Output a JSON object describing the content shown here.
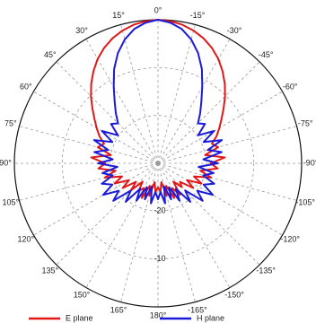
{
  "chart_data": {
    "type": "polar",
    "title": "",
    "angle_ticks": [
      "0°",
      "15°",
      "30°",
      "45°",
      "60°",
      "75°",
      "90°",
      "105°",
      "120°",
      "135°",
      "150°",
      "165°",
      "180°",
      "-165°",
      "-150°",
      "-135°",
      "-120°",
      "-105°",
      "-90°",
      "-75°",
      "-60°",
      "-45°",
      "-30°",
      "-15°"
    ],
    "radial_ticks": [
      "-20",
      "-10"
    ],
    "radial_range_db": [
      -30,
      0
    ],
    "grid": true,
    "legend_position": "bottom",
    "series": [
      {
        "name": "E plane",
        "color": "#e01818",
        "angles_deg": [
          0,
          5,
          10,
          15,
          20,
          25,
          30,
          35,
          40,
          45,
          50,
          55,
          60,
          65,
          70,
          75,
          80,
          85,
          90,
          95,
          100,
          105,
          110,
          115,
          120,
          125,
          130,
          135,
          140,
          145,
          150,
          155,
          160,
          165,
          170,
          175,
          180,
          185,
          190,
          195,
          200,
          205,
          210,
          215,
          220,
          225,
          230,
          235,
          240,
          245,
          250,
          255,
          260,
          265,
          270,
          275,
          280,
          285,
          290,
          295,
          300,
          305,
          310,
          315,
          320,
          325,
          330,
          335,
          340,
          345,
          350,
          355
        ],
        "gain_db": [
          0,
          -0.2,
          -0.6,
          -1.3,
          -2.2,
          -3.4,
          -4.8,
          -6.5,
          -8.3,
          -10.2,
          -12.1,
          -13.8,
          -15.2,
          -16.5,
          -18,
          -17,
          -20,
          -16,
          -19,
          -17.5,
          -21,
          -18.5,
          -22,
          -20,
          -23,
          -21,
          -24,
          -22,
          -25,
          -23,
          -24,
          -22,
          -25,
          -23,
          -26,
          -24,
          -25,
          -24,
          -26,
          -23,
          -25,
          -22,
          -24,
          -22,
          -25,
          -23,
          -24,
          -21,
          -23,
          -20,
          -22,
          -18.5,
          -21,
          -17.5,
          -19,
          -16,
          -20,
          -17,
          -18,
          -16.5,
          -15.2,
          -13.8,
          -12.1,
          -10.2,
          -8.3,
          -6.5,
          -4.8,
          -3.4,
          -2.2,
          -1.3,
          -0.6,
          -0.2
        ]
      },
      {
        "name": "H plane",
        "color": "#1a1ad8",
        "angles_deg": [
          0,
          5,
          10,
          15,
          20,
          25,
          30,
          35,
          40,
          45,
          50,
          55,
          60,
          65,
          70,
          75,
          80,
          85,
          90,
          95,
          100,
          105,
          110,
          115,
          120,
          125,
          130,
          135,
          140,
          145,
          150,
          155,
          160,
          165,
          170,
          175,
          180,
          185,
          190,
          195,
          200,
          205,
          210,
          215,
          220,
          225,
          230,
          235,
          240,
          245,
          250,
          255,
          260,
          265,
          270,
          275,
          280,
          285,
          290,
          295,
          300,
          305,
          310,
          315,
          320,
          325,
          330,
          335,
          340,
          345,
          350,
          355
        ],
        "gain_db": [
          0,
          -0.5,
          -1.5,
          -3.2,
          -5.5,
          -8.3,
          -11.5,
          -14.2,
          -16.3,
          -18.2,
          -17.2,
          -19.8,
          -16.5,
          -19.5,
          -15.8,
          -19.2,
          -16.5,
          -20.5,
          -17.5,
          -21.5,
          -18.2,
          -20.2,
          -17.5,
          -19.5,
          -16.8,
          -20,
          -17.8,
          -22,
          -19.5,
          -23.5,
          -21,
          -24.5,
          -22,
          -25,
          -21.5,
          -24,
          -22.5,
          -24,
          -21.5,
          -25,
          -22,
          -24.5,
          -21,
          -23.5,
          -19.5,
          -22,
          -17.8,
          -20,
          -16.8,
          -19.5,
          -17.5,
          -20.2,
          -18.2,
          -21.5,
          -17.5,
          -20.5,
          -16.5,
          -19.2,
          -15.8,
          -19.5,
          -16.5,
          -19.8,
          -17.2,
          -18.2,
          -16.3,
          -14.2,
          -11.5,
          -8.3,
          -5.5,
          -3.2,
          -1.5,
          -0.5
        ]
      }
    ]
  }
}
